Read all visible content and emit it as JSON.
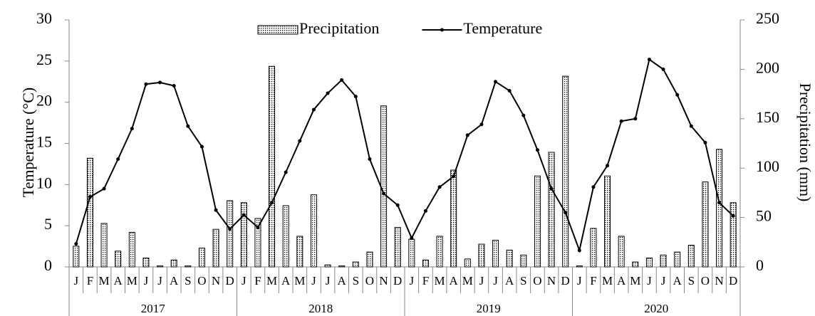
{
  "chart_data": {
    "type": "bar-line",
    "legend": "top",
    "y_label": "Temperature (°C)",
    "y2_label": "Precipitation (mm)",
    "categories": [
      "J",
      "F",
      "M",
      "A",
      "M",
      "J",
      "J",
      "A",
      "S",
      "O",
      "N",
      "D",
      "J",
      "F",
      "M",
      "A",
      "M",
      "J",
      "J",
      "A",
      "S",
      "O",
      "N",
      "D",
      "J",
      "F",
      "M",
      "A",
      "M",
      "J",
      "J",
      "A",
      "S",
      "O",
      "N",
      "D",
      "J",
      "F",
      "M",
      "A",
      "M",
      "J",
      "J",
      "A",
      "S",
      "O",
      "N",
      "D"
    ],
    "groups": [
      "2017",
      "2018",
      "2019",
      "2020"
    ],
    "ylim": [
      0,
      30
    ],
    "yticks": [
      0,
      5,
      10,
      15,
      20,
      25,
      30
    ],
    "y2lim": [
      0,
      250
    ],
    "y2ticks": [
      0,
      50,
      100,
      150,
      200,
      250
    ],
    "series": [
      {
        "name": "Precipitation",
        "type": "bar",
        "axis": "y2",
        "color": "#000000",
        "values": [
          21,
          110,
          44,
          16,
          35,
          9,
          1,
          7,
          1,
          19,
          38,
          67,
          65,
          49,
          203,
          62,
          31,
          73,
          2,
          1,
          5,
          15,
          163,
          40,
          28,
          7,
          31,
          98,
          8,
          23,
          27,
          17,
          12,
          92,
          116,
          193,
          1,
          39,
          92,
          31,
          5,
          9,
          12,
          15,
          22,
          86,
          119,
          65
        ]
      },
      {
        "name": "Temperature",
        "type": "line",
        "axis": "y",
        "color": "#000000",
        "values": [
          2.8,
          8.5,
          9.5,
          13.1,
          16.8,
          22.2,
          22.4,
          22.0,
          17.1,
          14.6,
          6.9,
          4.6,
          6.3,
          4.8,
          7.8,
          11.5,
          15.3,
          19.1,
          21.1,
          22.7,
          20.7,
          13.1,
          8.9,
          7.5,
          3.5,
          6.8,
          9.7,
          11.0,
          16.0,
          17.3,
          22.5,
          21.4,
          18.4,
          14.2,
          9.5,
          6.6,
          2.0,
          9.7,
          12.3,
          17.7,
          18.0,
          25.2,
          24.0,
          20.9,
          17.1,
          15.1,
          7.8,
          6.2
        ]
      }
    ]
  }
}
